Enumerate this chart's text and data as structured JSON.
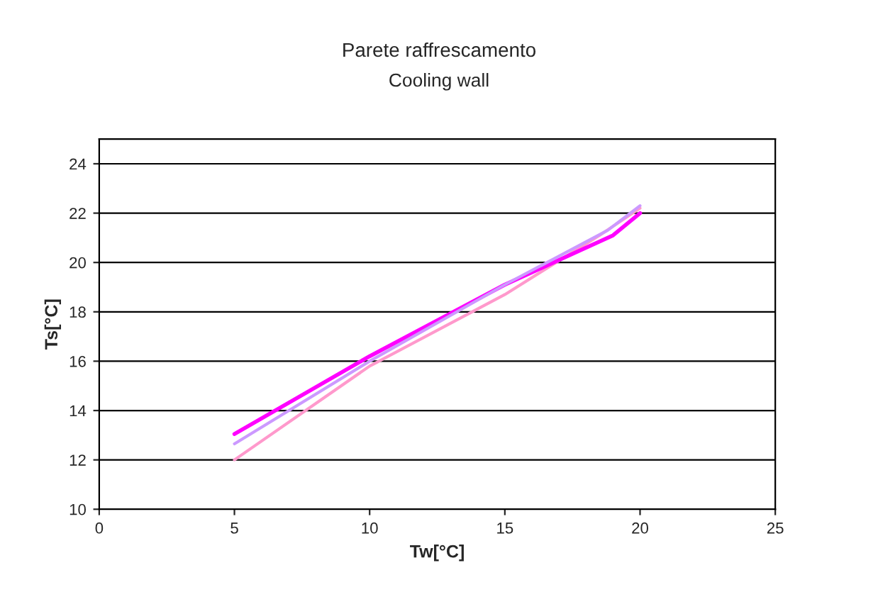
{
  "chart_data": {
    "type": "line",
    "title": "Parete raffrescamento",
    "subtitle": "Cooling wall",
    "xlabel": "Tw[°C]",
    "ylabel": "Ts[°C]",
    "xlim": [
      0,
      25
    ],
    "xticks": [
      0,
      5,
      10,
      15,
      20,
      25
    ],
    "ylim": [
      10,
      25
    ],
    "yticks": [
      10,
      12,
      14,
      16,
      18,
      20,
      22,
      24
    ],
    "grid": "y",
    "marker": "none",
    "line_style": "solid",
    "series": [
      {
        "color": "#ff99cc",
        "x": [
          5,
          10,
          15,
          18.5,
          20
        ],
        "values": [
          12,
          15.8,
          18.7,
          21.1,
          22.2
        ]
      },
      {
        "color": "#ff00ff",
        "x": [
          5,
          10,
          15,
          17,
          19,
          20
        ],
        "values": [
          13.05,
          16.2,
          19.1,
          20.1,
          21.1,
          22
        ]
      },
      {
        "color": "#cc99ff",
        "x": [
          5,
          10,
          15,
          18.8,
          20
        ],
        "values": [
          12.65,
          16,
          19.1,
          21.3,
          22.3
        ]
      }
    ]
  }
}
